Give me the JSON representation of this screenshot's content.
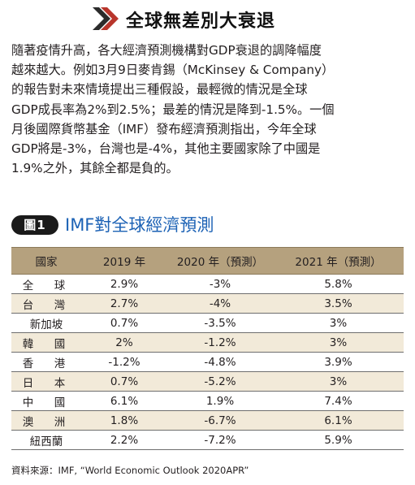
{
  "header": {
    "title": "全球無差別大衰退"
  },
  "body": {
    "lines": [
      "隨著疫情升高，各大經濟預測機構對GDP衰退的調降幅度",
      "越來越大。例如3月9日麥肯錫（McKinsey & Company）",
      "的報告對未來情境提出三種假設，最輕微的情況是全球",
      "GDP成長率為2%到2.5%；最差的情況是降到-1.5%。一個",
      "月後國際貨幣基金（IMF）發布經濟預測指出，今年全球",
      "GDP將是-3%，台灣也是-4%，其他主要國家除了中國是",
      "1.9%之外，其餘全都是負的。"
    ]
  },
  "figure": {
    "badge": "圖1",
    "title": "IMF對全球經濟預測"
  },
  "table": {
    "headers": [
      "國家",
      "2019 年",
      "2020 年（預測）",
      "2021 年（預測）"
    ],
    "rows": [
      [
        "全　球",
        "2.9%",
        "-3%",
        "5.8%"
      ],
      [
        "台　灣",
        "2.7%",
        "-4%",
        "3.5%"
      ],
      [
        "新加坡",
        "0.7%",
        "-3.5%",
        "3%"
      ],
      [
        "韓　國",
        "2%",
        "-1.2%",
        "3%"
      ],
      [
        "香　港",
        "-1.2%",
        "-4.8%",
        "3.9%"
      ],
      [
        "日　本",
        "0.7%",
        "-5.2%",
        "3%"
      ],
      [
        "中　國",
        "6.1%",
        "1.9%",
        "7.4%"
      ],
      [
        "澳　洲",
        "1.8%",
        "-6.7%",
        "6.1%"
      ],
      [
        "紐西蘭",
        "2.2%",
        "-7.2%",
        "5.9%"
      ]
    ]
  },
  "source": "資料來源：IMF, “World Economic Outlook 2020APR”",
  "colors": {
    "table_header_bg": "#b5a17e",
    "table_stripe": "#f2ead9",
    "figure_title": "#1c62b5",
    "badge_bg": "#1a1a1a"
  }
}
